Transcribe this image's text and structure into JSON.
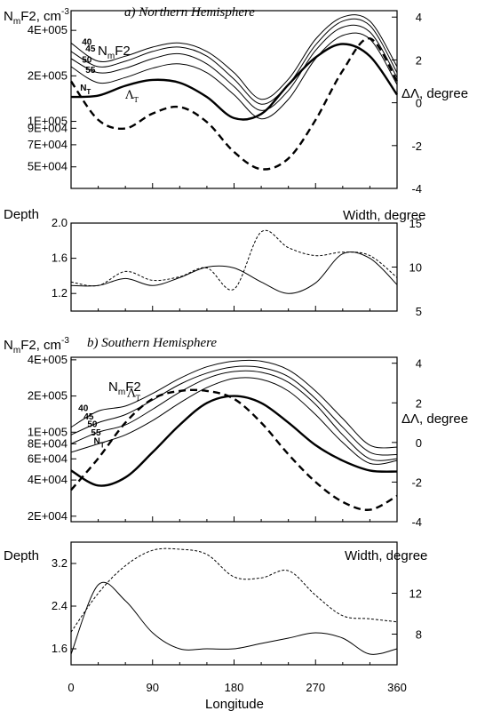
{
  "chart_data": [
    {
      "panel": "a-top",
      "type": "line",
      "title_left": "NmF2, cm-3",
      "title_left_parts": {
        "n": "N",
        "m": "m",
        "f2": "F2, cm",
        "exp": "-3"
      },
      "subtitle": "a) Northern Hemisphere",
      "curve_label_parts": {
        "n": "N",
        "m": "m",
        "f2": "F2"
      },
      "right_axis_label": "ΔΛ, degree",
      "yscale": "log",
      "ylim": [
        36000,
        540000
      ],
      "y_ticks": [
        {
          "v": 400000,
          "label": "4E+005"
        },
        {
          "v": 200000,
          "label": "2E+005"
        },
        {
          "v": 100000,
          "label": "1E+005"
        },
        {
          "v": 90000,
          "label": "9E+004"
        },
        {
          "v": 70000,
          "label": "7E+004"
        },
        {
          "v": 50000,
          "label": "5E+004"
        }
      ],
      "y2lim": [
        -4,
        4.3
      ],
      "y2_ticks": [
        {
          "v": 4,
          "label": "4"
        },
        {
          "v": 2,
          "label": "2"
        },
        {
          "v": 0,
          "label": "0"
        },
        {
          "v": -2,
          "label": "-2"
        },
        {
          "v": -4,
          "label": "-4"
        }
      ],
      "xlim": [
        0,
        360
      ],
      "x": [
        0,
        30,
        60,
        90,
        120,
        150,
        180,
        210,
        240,
        270,
        300,
        330,
        360
      ],
      "series": [
        {
          "name": "40",
          "values": [
            330000,
            250000,
            270000,
            310000,
            330000,
            290000,
            210000,
            140000,
            190000,
            350000,
            490000,
            460000,
            230000
          ]
        },
        {
          "name": "45",
          "values": [
            290000,
            230000,
            250000,
            290000,
            310000,
            270000,
            190000,
            130000,
            175000,
            320000,
            460000,
            430000,
            210000
          ]
        },
        {
          "name": "50",
          "values": [
            260000,
            210000,
            225000,
            260000,
            280000,
            240000,
            170000,
            118000,
            160000,
            295000,
            420000,
            390000,
            195000
          ]
        },
        {
          "name": "55",
          "values": [
            230000,
            180000,
            195000,
            225000,
            240000,
            210000,
            150000,
            104000,
            140000,
            260000,
            370000,
            350000,
            175000
          ]
        },
        {
          "name": "NT",
          "label_parts": {
            "base": "N",
            "sub": "T"
          },
          "values": [
            145000,
            148000,
            172000,
            188000,
            180000,
            145000,
            105000,
            112000,
            175000,
            265000,
            325000,
            270000,
            150000
          ]
        },
        {
          "name": "ΛT",
          "label_parts": {
            "base": "Λ",
            "sub": "T"
          },
          "axis": "right",
          "values": [
            1.0,
            -0.8,
            -1.2,
            -0.5,
            -0.2,
            -0.9,
            -2.3,
            -3.1,
            -2.6,
            -0.8,
            1.5,
            3.0,
            1.0
          ]
        }
      ],
      "labels": [
        {
          "text": "40",
          "x": 12,
          "y": 320000
        },
        {
          "text": "45",
          "x": 16,
          "y": 290000
        },
        {
          "text": "50",
          "x": 12,
          "y": 245000
        },
        {
          "text": "55",
          "x": 16,
          "y": 210000
        },
        {
          "text": "NT",
          "x": 10,
          "y": 160000
        },
        {
          "text": "ΛT",
          "x": 60,
          "y": 0.2,
          "axis": "right"
        }
      ]
    },
    {
      "panel": "a-bottom",
      "type": "line",
      "ylabel": "Depth",
      "right_axis_label": "Width, degree",
      "ylim": [
        1.0,
        2.0
      ],
      "y_ticks": [
        {
          "v": 2.0,
          "label": "2.0"
        },
        {
          "v": 1.6,
          "label": "1.6"
        },
        {
          "v": 1.2,
          "label": "1.2"
        }
      ],
      "y2lim": [
        5,
        15
      ],
      "y2_ticks": [
        {
          "v": 15,
          "label": "15"
        },
        {
          "v": 10,
          "label": "10"
        },
        {
          "v": 5,
          "label": "5"
        }
      ],
      "xlim": [
        0,
        360
      ],
      "x": [
        0,
        30,
        60,
        90,
        120,
        150,
        180,
        210,
        240,
        270,
        300,
        330,
        360
      ],
      "series": [
        {
          "name": "Depth",
          "style": "solid",
          "values": [
            1.29,
            1.29,
            1.37,
            1.29,
            1.38,
            1.5,
            1.49,
            1.33,
            1.2,
            1.32,
            1.65,
            1.6,
            1.3
          ]
        },
        {
          "name": "Width",
          "axis": "right",
          "style": "dashed",
          "values": [
            8.3,
            7.9,
            9.5,
            8.5,
            8.9,
            9.9,
            7.5,
            14.0,
            12.2,
            11.3,
            11.7,
            11.3,
            8.8
          ]
        }
      ]
    },
    {
      "panel": "b-top",
      "type": "line",
      "title_left": "NmF2, cm-3",
      "title_left_parts": {
        "n": "N",
        "m": "m",
        "f2": "F2, cm",
        "exp": "-3"
      },
      "subtitle": "b) Southern Hemisphere",
      "curve_label_parts": {
        "n": "N",
        "m": "m",
        "f2": "F2"
      },
      "right_axis_label": "ΔΛ, degree",
      "yscale": "log",
      "ylim": [
        18000,
        420000
      ],
      "y_ticks": [
        {
          "v": 400000,
          "label": "4E+005"
        },
        {
          "v": 200000,
          "label": "2E+005"
        },
        {
          "v": 100000,
          "label": "1E+005"
        },
        {
          "v": 80000,
          "label": "8E+004"
        },
        {
          "v": 60000,
          "label": "6E+004"
        },
        {
          "v": 40000,
          "label": "4E+004"
        },
        {
          "v": 20000,
          "label": "2E+004"
        }
      ],
      "y2lim": [
        -4,
        4.3
      ],
      "y2_ticks": [
        {
          "v": 4,
          "label": "4"
        },
        {
          "v": 2,
          "label": "2"
        },
        {
          "v": 0,
          "label": "0"
        },
        {
          "v": -2,
          "label": "-2"
        },
        {
          "v": -4,
          "label": "-4"
        }
      ],
      "xlim": [
        0,
        360
      ],
      "x": [
        0,
        30,
        60,
        90,
        120,
        150,
        180,
        210,
        240,
        270,
        300,
        330,
        360
      ],
      "series": [
        {
          "name": "40",
          "values": [
            110000,
            150000,
            165000,
            210000,
            280000,
            350000,
            390000,
            390000,
            330000,
            220000,
            130000,
            78000,
            75000
          ]
        },
        {
          "name": "45",
          "values": [
            95000,
            120000,
            140000,
            185000,
            250000,
            310000,
            350000,
            345000,
            290000,
            190000,
            110000,
            68000,
            65000
          ]
        },
        {
          "name": "50",
          "values": [
            80000,
            100000,
            115000,
            155000,
            215000,
            280000,
            320000,
            315000,
            260000,
            170000,
            95000,
            60000,
            60000
          ]
        },
        {
          "name": "55",
          "values": [
            68000,
            80000,
            95000,
            125000,
            175000,
            235000,
            280000,
            275000,
            220000,
            140000,
            82000,
            55000,
            58000
          ]
        },
        {
          "name": "NT",
          "label_parts": {
            "base": "N",
            "sub": "T"
          },
          "values": [
            48000,
            36000,
            42000,
            68000,
            115000,
            175000,
            200000,
            175000,
            120000,
            78000,
            58000,
            48000,
            47000
          ]
        },
        {
          "name": "ΛT",
          "label_parts": {
            "base": "Λ",
            "sub": "T"
          },
          "axis": "right",
          "values": [
            -2.4,
            -0.8,
            1.0,
            2.2,
            2.6,
            2.6,
            2.2,
            1.0,
            -0.6,
            -2.0,
            -3.0,
            -3.4,
            -2.7
          ]
        }
      ],
      "labels": [
        {
          "text": "40",
          "x": 8,
          "y": 150000
        },
        {
          "text": "45",
          "x": 14,
          "y": 128000
        },
        {
          "text": "50",
          "x": 18,
          "y": 110000
        },
        {
          "text": "55",
          "x": 22,
          "y": 94000
        },
        {
          "text": "NT",
          "x": 25,
          "y": 80000
        },
        {
          "text": "ΛT",
          "x": 62,
          "y": 2.3,
          "axis": "right"
        }
      ]
    },
    {
      "panel": "b-bottom",
      "type": "line",
      "ylabel": "Depth",
      "right_axis_label": "Width, degree",
      "xlabel": "Longitude",
      "ylim": [
        1.3,
        3.6
      ],
      "y_ticks": [
        {
          "v": 3.2,
          "label": "3.2"
        },
        {
          "v": 2.4,
          "label": "2.4"
        },
        {
          "v": 1.6,
          "label": "1.6"
        }
      ],
      "y2lim": [
        5,
        17
      ],
      "y2_ticks": [
        {
          "v": 12,
          "label": "12"
        },
        {
          "v": 8,
          "label": "8"
        }
      ],
      "x_ticks": [
        {
          "v": 0,
          "label": "0"
        },
        {
          "v": 90,
          "label": "90"
        },
        {
          "v": 180,
          "label": "180"
        },
        {
          "v": 270,
          "label": "270"
        },
        {
          "v": 360,
          "label": "360"
        }
      ],
      "xlim": [
        0,
        360
      ],
      "x": [
        0,
        30,
        60,
        90,
        120,
        150,
        180,
        210,
        240,
        270,
        300,
        330,
        360
      ],
      "series": [
        {
          "name": "Depth",
          "style": "solid",
          "values": [
            1.5,
            2.8,
            2.5,
            1.9,
            1.6,
            1.6,
            1.6,
            1.7,
            1.8,
            1.9,
            1.8,
            1.5,
            1.6
          ]
        },
        {
          "name": "Width",
          "axis": "right",
          "style": "dashed",
          "values": [
            8.2,
            12.0,
            14.7,
            16.2,
            16.3,
            15.8,
            13.6,
            13.5,
            14.2,
            11.8,
            9.8,
            9.5,
            9.2
          ]
        }
      ]
    }
  ]
}
